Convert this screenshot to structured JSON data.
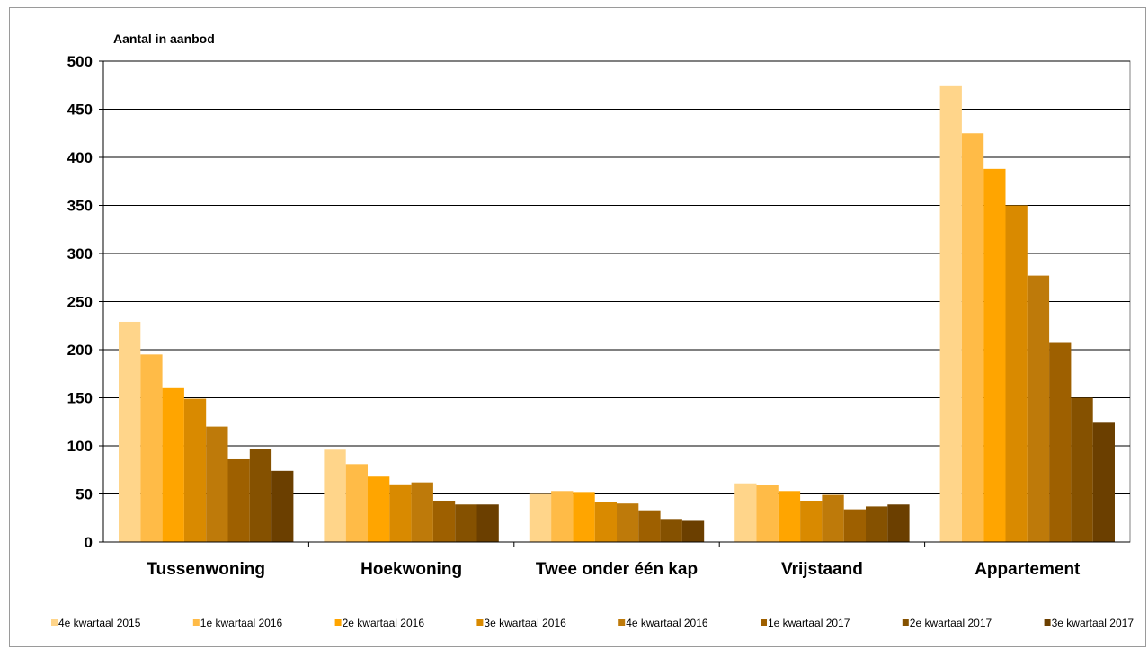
{
  "chart_data": {
    "type": "bar",
    "ylabel": "Aantal in aanbod",
    "xlabel": "",
    "ylim": [
      0,
      500
    ],
    "yticks": [
      0,
      50,
      100,
      150,
      200,
      250,
      300,
      350,
      400,
      450,
      500
    ],
    "grid": true,
    "legend_position": "bottom",
    "categories": [
      "Tussenwoning",
      "Hoekwoning",
      "Twee onder één kap",
      "Vrijstaand",
      "Appartement"
    ],
    "series": [
      {
        "name": "4e kwartaal 2015",
        "color": "#FFD58A",
        "values": [
          229,
          96,
          50,
          61,
          474
        ]
      },
      {
        "name": "1e kwartaal 2016",
        "color": "#FFBB47",
        "values": [
          195,
          81,
          53,
          59,
          425
        ]
      },
      {
        "name": "2e kwartaal 2016",
        "color": "#FFA500",
        "values": [
          160,
          68,
          52,
          53,
          388
        ]
      },
      {
        "name": "3e kwartaal 2016",
        "color": "#D98A00",
        "values": [
          149,
          60,
          42,
          43,
          350
        ]
      },
      {
        "name": "4e kwartaal 2016",
        "color": "#BE7A0A",
        "values": [
          120,
          62,
          40,
          49,
          277
        ]
      },
      {
        "name": "1e kwartaal 2017",
        "color": "#9E6000",
        "values": [
          86,
          43,
          33,
          34,
          207
        ]
      },
      {
        "name": "2e kwartaal 2017",
        "color": "#855100",
        "values": [
          97,
          39,
          24,
          37,
          150
        ]
      },
      {
        "name": "3e kwartaal 2017",
        "color": "#6B3F00",
        "values": [
          74,
          39,
          22,
          39,
          124
        ]
      }
    ]
  }
}
